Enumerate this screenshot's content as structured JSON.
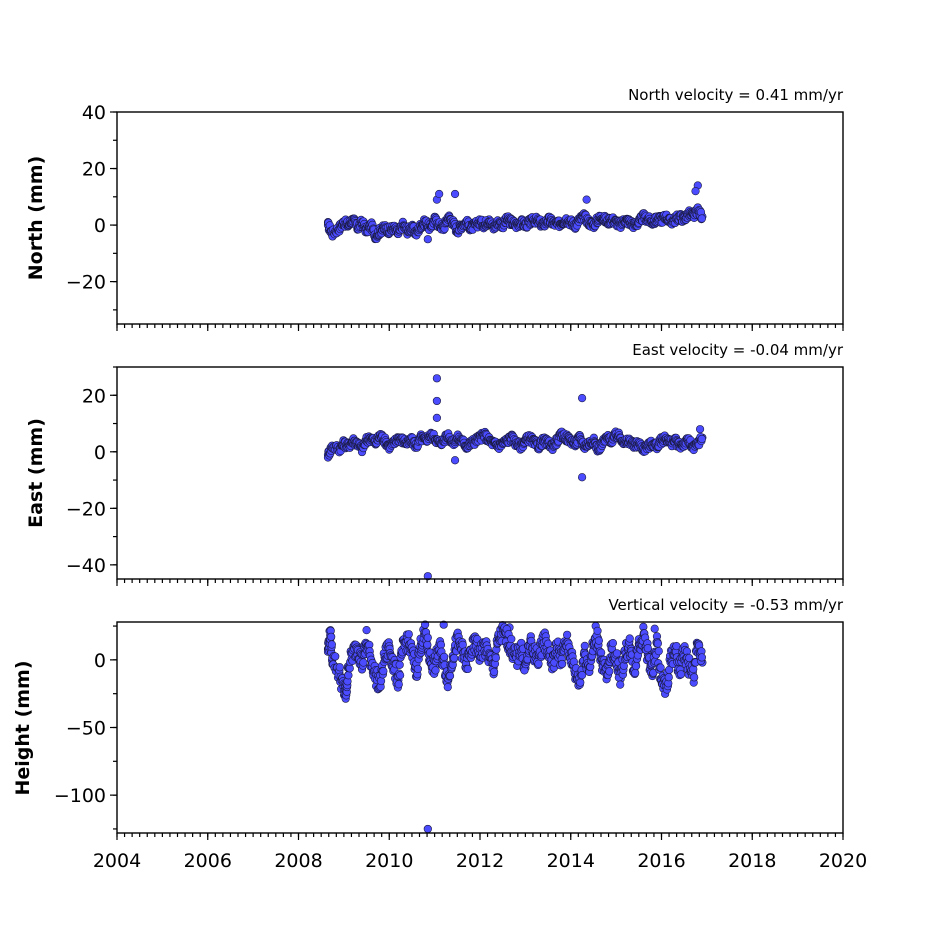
{
  "colors": {
    "marker": "#4b4bff",
    "marker_edge": "#1a1a40"
  },
  "chart_data": [
    {
      "type": "scatter",
      "title": "North velocity = 0.41 mm/yr",
      "xlabel": "",
      "ylabel": "North (mm)",
      "xlim": [
        2004,
        2020
      ],
      "ylim": [
        -35,
        40
      ],
      "yticks": [
        40,
        20,
        0,
        -20
      ],
      "ytick_labels": [
        "40",
        "20",
        "0",
        "−20"
      ],
      "xticks": [
        2004,
        2006,
        2008,
        2010,
        2012,
        2014,
        2016,
        2018,
        2020
      ],
      "xtick_labels": [],
      "series": [
        {
          "x": [
            2008.65,
            2008.75,
            2008.9,
            2009.0,
            2009.1,
            2009.2,
            2009.3,
            2009.4,
            2009.5,
            2009.6,
            2009.7,
            2009.8,
            2009.9,
            2010.0,
            2010.1,
            2010.2,
            2010.3,
            2010.4,
            2010.5,
            2010.6,
            2010.7,
            2010.8,
            2010.9,
            2011.0,
            2011.1,
            2011.2,
            2011.3,
            2011.4,
            2011.5,
            2011.6,
            2011.7,
            2011.8,
            2011.9,
            2012.0,
            2012.1,
            2012.2,
            2012.3,
            2012.4,
            2012.5,
            2012.6,
            2012.7,
            2012.8,
            2012.9,
            2013.0,
            2013.1,
            2013.2,
            2013.3,
            2013.4,
            2013.5,
            2013.6,
            2013.7,
            2013.8,
            2013.9,
            2014.0,
            2014.1,
            2014.2,
            2014.3,
            2014.4,
            2014.5,
            2014.6,
            2014.7,
            2014.8,
            2014.9,
            2015.0,
            2015.1,
            2015.2,
            2015.3,
            2015.4,
            2015.5,
            2015.6,
            2015.7,
            2015.8,
            2015.9,
            2016.0,
            2016.1,
            2016.2,
            2016.3,
            2016.4,
            2016.5,
            2016.6,
            2016.7,
            2016.8,
            2016.9,
            2011.05,
            2011.1,
            2011.45,
            2014.35,
            2016.8,
            2016.75,
            2010.85
          ],
          "y": [
            0,
            -3,
            -1,
            1,
            0,
            2,
            -1,
            1,
            -2,
            0,
            -4,
            -2,
            -1,
            -2,
            -1,
            -3,
            0,
            -2,
            -1,
            -3,
            0,
            1,
            -1,
            2,
            0,
            -1,
            3,
            1,
            -2,
            0,
            1,
            -1,
            0,
            1,
            0,
            2,
            -1,
            1,
            0,
            2,
            1,
            0,
            1,
            0,
            1,
            2,
            1,
            0,
            2,
            1,
            0,
            1,
            2,
            1,
            0,
            2,
            3,
            1,
            0,
            2,
            3,
            1,
            2,
            1,
            0,
            2,
            1,
            0,
            1,
            3,
            2,
            1,
            2,
            2,
            3,
            1,
            2,
            3,
            2,
            4,
            3,
            5,
            3,
            9,
            11,
            11,
            9,
            14,
            12,
            -5
          ]
        }
      ]
    },
    {
      "type": "scatter",
      "title": "East velocity = -0.04 mm/yr",
      "xlabel": "",
      "ylabel": "East (mm)",
      "xlim": [
        2004,
        2020
      ],
      "ylim": [
        -45,
        30
      ],
      "yticks": [
        20,
        0,
        -20,
        -40
      ],
      "ytick_labels": [
        "20",
        "0",
        "−20",
        "−40"
      ],
      "xticks": [
        2004,
        2006,
        2008,
        2010,
        2012,
        2014,
        2016,
        2018,
        2020
      ],
      "xtick_labels": [],
      "series": [
        {
          "x": [
            2008.65,
            2008.75,
            2008.9,
            2009.0,
            2009.1,
            2009.2,
            2009.3,
            2009.4,
            2009.5,
            2009.6,
            2009.7,
            2009.8,
            2009.9,
            2010.0,
            2010.1,
            2010.2,
            2010.3,
            2010.4,
            2010.5,
            2010.6,
            2010.7,
            2010.8,
            2010.9,
            2011.0,
            2011.1,
            2011.2,
            2011.3,
            2011.4,
            2011.5,
            2011.6,
            2011.7,
            2011.8,
            2011.9,
            2012.0,
            2012.1,
            2012.2,
            2012.3,
            2012.4,
            2012.5,
            2012.6,
            2012.7,
            2012.8,
            2012.9,
            2013.0,
            2013.1,
            2013.2,
            2013.3,
            2013.4,
            2013.5,
            2013.6,
            2013.7,
            2013.8,
            2013.9,
            2014.0,
            2014.1,
            2014.2,
            2014.3,
            2014.4,
            2014.5,
            2014.6,
            2014.7,
            2014.8,
            2014.9,
            2015.0,
            2015.1,
            2015.2,
            2015.3,
            2015.4,
            2015.5,
            2015.6,
            2015.7,
            2015.8,
            2015.9,
            2016.0,
            2016.1,
            2016.2,
            2016.3,
            2016.4,
            2016.5,
            2016.6,
            2016.7,
            2016.8,
            2016.9,
            2011.05,
            2011.05,
            2011.05,
            2011.45,
            2014.25,
            2014.25,
            2010.85,
            2016.85
          ],
          "y": [
            -1,
            2,
            1,
            3,
            2,
            4,
            3,
            1,
            4,
            5,
            3,
            6,
            4,
            2,
            3,
            5,
            4,
            3,
            4,
            2,
            5,
            4,
            6,
            5,
            3,
            4,
            6,
            3,
            5,
            4,
            2,
            3,
            4,
            5,
            6,
            4,
            3,
            2,
            3,
            4,
            5,
            3,
            2,
            4,
            5,
            3,
            2,
            4,
            3,
            2,
            4,
            6,
            5,
            4,
            3,
            5,
            2,
            3,
            4,
            1,
            3,
            5,
            4,
            6,
            5,
            3,
            4,
            2,
            3,
            1,
            2,
            3,
            2,
            4,
            5,
            3,
            4,
            2,
            3,
            4,
            1,
            3,
            5,
            26,
            18,
            12,
            -3,
            19,
            -9,
            -44,
            8
          ]
        }
      ]
    },
    {
      "type": "scatter",
      "title": "Vertical velocity = -0.53 mm/yr",
      "xlabel": "",
      "ylabel": "Height (mm)",
      "xlim": [
        2004,
        2020
      ],
      "ylim": [
        -128,
        28
      ],
      "yticks": [
        0,
        -50,
        -100
      ],
      "ytick_labels": [
        "0",
        "−50",
        "−100"
      ],
      "xticks": [
        2004,
        2006,
        2008,
        2010,
        2012,
        2014,
        2016,
        2018,
        2020
      ],
      "xtick_labels": [
        "2004",
        "2006",
        "2008",
        "2010",
        "2012",
        "2014",
        "2016",
        "2018",
        "2020"
      ],
      "series": [
        {
          "x": [
            2008.65,
            2008.7,
            2008.75,
            2008.9,
            2009.0,
            2009.05,
            2009.1,
            2009.2,
            2009.3,
            2009.4,
            2009.5,
            2009.6,
            2009.7,
            2009.8,
            2009.9,
            2010.0,
            2010.1,
            2010.2,
            2010.3,
            2010.4,
            2010.5,
            2010.6,
            2010.7,
            2010.8,
            2010.9,
            2011.0,
            2011.1,
            2011.2,
            2011.3,
            2011.4,
            2011.5,
            2011.6,
            2011.7,
            2011.8,
            2011.9,
            2012.0,
            2012.1,
            2012.2,
            2012.3,
            2012.4,
            2012.5,
            2012.6,
            2012.7,
            2012.8,
            2012.9,
            2013.0,
            2013.1,
            2013.2,
            2013.3,
            2013.4,
            2013.5,
            2013.6,
            2013.7,
            2013.8,
            2013.9,
            2014.0,
            2014.1,
            2014.2,
            2014.3,
            2014.4,
            2014.5,
            2014.6,
            2014.7,
            2014.8,
            2014.9,
            2015.0,
            2015.1,
            2015.2,
            2015.3,
            2015.4,
            2015.5,
            2015.6,
            2015.7,
            2015.8,
            2015.9,
            2016.0,
            2016.1,
            2016.2,
            2016.3,
            2016.4,
            2016.5,
            2016.6,
            2016.7,
            2016.8,
            2016.9,
            2009.5,
            2011.2,
            2012.65,
            2014.55,
            2015.85,
            2010.85
          ],
          "y": [
            8,
            18,
            2,
            -10,
            -22,
            -26,
            -5,
            5,
            10,
            -3,
            12,
            0,
            -12,
            -18,
            2,
            10,
            -5,
            -15,
            8,
            15,
            5,
            -8,
            12,
            20,
            0,
            -5,
            10,
            -2,
            -15,
            3,
            14,
            8,
            -4,
            6,
            12,
            4,
            10,
            2,
            -6,
            14,
            20,
            16,
            8,
            0,
            10,
            -6,
            12,
            4,
            2,
            16,
            8,
            -4,
            10,
            0,
            14,
            4,
            -10,
            -16,
            6,
            -6,
            10,
            16,
            -4,
            -12,
            8,
            2,
            -14,
            6,
            10,
            -8,
            12,
            18,
            4,
            -10,
            12,
            -16,
            -22,
            0,
            8,
            -8,
            6,
            -4,
            -12,
            10,
            -2,
            22,
            26,
            24,
            25,
            23,
            -125
          ]
        }
      ]
    }
  ]
}
